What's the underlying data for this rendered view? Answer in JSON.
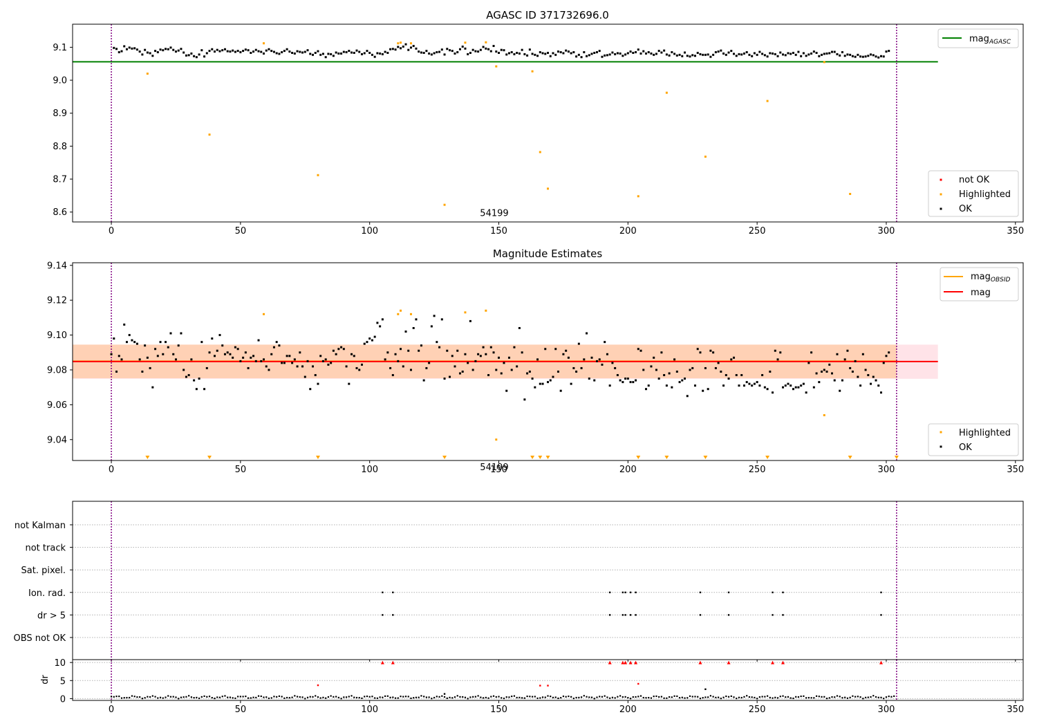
{
  "figure": {
    "panel1_title": "AGASC ID 371732696.0",
    "panel2_title": "Magnitude Estimates",
    "obsid_label": "54199"
  },
  "colors": {
    "ok": "#000000",
    "highlighted": "#ffa500",
    "not_ok": "#ff0000",
    "mag_agasc_line": "#008000",
    "mag_line": "#ff0000",
    "mag_obsid_line": "#ffa500",
    "obs_boundary": "#800080",
    "mag_band_outer": "#ffc0cb",
    "mag_band_inner": "#ffcba4",
    "grid": "#b0b0b0"
  },
  "chart_data": [
    {
      "type": "scatter",
      "title": "AGASC ID 371732696.0",
      "xlim": [
        -15,
        353
      ],
      "ylim": [
        8.57,
        9.17
      ],
      "xticks": [
        0,
        50,
        100,
        150,
        200,
        250,
        300,
        350
      ],
      "yticks": [
        8.6,
        8.7,
        8.8,
        8.9,
        9.0,
        9.1
      ],
      "mag_agasc": 9.056,
      "mag_agasc_xrange": [
        -15,
        320
      ],
      "obs_boundaries": [
        0,
        304
      ],
      "annotation": {
        "text": "54199",
        "x": 152,
        "y": 8.6
      },
      "legends": {
        "line": [
          {
            "label": "mag",
            "sub": "AGASC",
            "color": "#008000"
          }
        ],
        "points": [
          {
            "label": "not OK",
            "color": "#ff0000"
          },
          {
            "label": "Highlighted",
            "color": "#ffa500"
          },
          {
            "label": "OK",
            "color": "#000000"
          }
        ]
      },
      "highlighted": [
        [
          14,
          9.02
        ],
        [
          38,
          8.835
        ],
        [
          59,
          9.112
        ],
        [
          80,
          8.712
        ],
        [
          111,
          9.112
        ],
        [
          112,
          9.114
        ],
        [
          116,
          9.112
        ],
        [
          129,
          8.622
        ],
        [
          137,
          9.114
        ],
        [
          145,
          9.115
        ],
        [
          149,
          9.042
        ],
        [
          163,
          9.027
        ],
        [
          166,
          8.782
        ],
        [
          169,
          8.671
        ],
        [
          204,
          8.648
        ],
        [
          215,
          8.962
        ],
        [
          230,
          8.768
        ],
        [
          254,
          8.937
        ],
        [
          276,
          9.055
        ],
        [
          286,
          8.655
        ]
      ],
      "ok_series": {
        "x_start": 1,
        "x_end": 303,
        "x_step": 1,
        "y": [
          9.098,
          9.095,
          9.085,
          9.088,
          9.103,
          9.094,
          9.099,
          9.096,
          9.097,
          9.093,
          9.087,
          9.078,
          9.092,
          9.084,
          9.082,
          9.074,
          9.089,
          9.085,
          9.093,
          9.091,
          9.095,
          9.094,
          9.099,
          9.092,
          9.087,
          9.09,
          9.095,
          9.084,
          9.075,
          9.076,
          9.081,
          9.073,
          9.07,
          9.078,
          9.091,
          9.072,
          9.082,
          9.089,
          9.094,
          9.087,
          9.092,
          9.088,
          9.091,
          9.094,
          9.088,
          9.087,
          9.09,
          9.086,
          9.089,
          9.085,
          9.089,
          9.093,
          9.091,
          9.083,
          9.087,
          9.092,
          9.088,
          9.086,
          9.081,
          9.09,
          9.094,
          9.089,
          9.086,
          9.082,
          9.08,
          9.085,
          9.089,
          9.094,
          9.087,
          9.083,
          9.081,
          9.088,
          9.086,
          9.084,
          9.086,
          9.091,
          9.08,
          9.077,
          9.083,
          9.088,
          9.077,
          9.08,
          9.07,
          9.08,
          9.079,
          9.074,
          9.084,
          9.081,
          9.081,
          9.086,
          9.085,
          9.089,
          9.084,
          9.083,
          9.09,
          9.086,
          9.079,
          9.082,
          9.089,
          9.083,
          9.077,
          9.071,
          9.082,
          9.081,
          9.079,
          9.086,
          9.083,
          9.094,
          9.095,
          9.093,
          9.101,
          9.097,
          9.102,
          9.109,
          9.092,
          9.099,
          9.104,
          9.096,
          9.087,
          9.084,
          9.083,
          9.089,
          9.081,
          9.078,
          9.082,
          9.085,
          9.086,
          9.093,
          9.078,
          9.095,
          9.091,
          9.089,
          9.081,
          9.085,
          9.094,
          9.102,
          9.096,
          9.079,
          9.083,
          9.092,
          9.088,
          9.087,
          9.092,
          9.101,
          9.096,
          9.094,
          9.088,
          9.104,
          9.087,
          9.083,
          9.092,
          9.091,
          9.078,
          9.082,
          9.085,
          9.079,
          9.083,
          9.081,
          9.092,
          9.079,
          9.075,
          9.093,
          9.08,
          9.077,
          9.074,
          9.085,
          9.082,
          9.08,
          9.083,
          9.073,
          9.082,
          9.077,
          9.087,
          9.085,
          9.082,
          9.09,
          9.087,
          9.082,
          9.085,
          9.072,
          9.077,
          9.07,
          9.085,
          9.073,
          9.076,
          9.08,
          9.083,
          9.085,
          9.089,
          9.071,
          9.075,
          9.076,
          9.078,
          9.084,
          9.079,
          9.082,
          9.081,
          9.074,
          9.078,
          9.082,
          9.087,
          9.083,
          9.085,
          9.093,
          9.081,
          9.088,
          9.081,
          9.085,
          9.081,
          9.077,
          9.08,
          9.089,
          9.084,
          9.09,
          9.078,
          9.075,
          9.085,
          9.08,
          9.075,
          9.077,
          9.073,
          9.084,
          9.074,
          9.072,
          9.076,
          9.074,
          9.083,
          9.079,
          9.077,
          9.077,
          9.078,
          9.071,
          9.077,
          9.085,
          9.087,
          9.09,
          9.081,
          9.077,
          9.084,
          9.089,
          9.08,
          9.074,
          9.079,
          9.078,
          9.081,
          9.085,
          9.077,
          9.073,
          9.082,
          9.077,
          9.086,
          9.08,
          9.076,
          9.072,
          9.082,
          9.081,
          9.079,
          9.073,
          9.084,
          9.078,
          9.076,
          9.082,
          9.08,
          9.083,
          9.077,
          9.086,
          9.073,
          9.082,
          9.074,
          9.078,
          9.081,
          9.087,
          9.083,
          9.073,
          9.077,
          9.08,
          9.081,
          9.082,
          9.086,
          9.086,
          9.079,
          9.075,
          9.085,
          9.074,
          9.078,
          9.077,
          9.073,
          9.071,
          9.077,
          9.072,
          9.071,
          9.072,
          9.074,
          9.078,
          9.076,
          9.072,
          9.069,
          9.073,
          9.072,
          9.087,
          9.089
        ]
      }
    },
    {
      "type": "scatter",
      "title": "Magnitude Estimates",
      "xlim": [
        -15,
        353
      ],
      "ylim": [
        9.028,
        9.1415
      ],
      "xticks": [
        0,
        50,
        100,
        150,
        200,
        250,
        300,
        350
      ],
      "yticks": [
        9.04,
        9.06,
        9.08,
        9.1,
        9.12,
        9.14
      ],
      "ytick_labels": [
        "9.04",
        "9.06",
        "9.08",
        "9.10",
        "9.12",
        "9.14"
      ],
      "mag": 9.0848,
      "mag_band_outer": [
        9.0749,
        9.0945
      ],
      "mag_band_inner": [
        9.0752,
        9.0945
      ],
      "mag_obsid": 9.085,
      "band_xrange": [
        -15,
        320
      ],
      "obs_boundaries": [
        0,
        304
      ],
      "annotation": {
        "text": "54199",
        "x": 152,
        "y": 9.032
      },
      "legends": {
        "line": [
          {
            "label": "mag",
            "sub": "OBSID",
            "color": "#ffa500"
          },
          {
            "label": "mag",
            "sub": "",
            "color": "#ff0000"
          }
        ],
        "points": [
          {
            "label": "Highlighted",
            "color": "#ffa500"
          },
          {
            "label": "OK",
            "color": "#000000"
          }
        ]
      },
      "highlighted": [
        [
          59,
          9.112
        ],
        [
          111,
          9.112
        ],
        [
          112,
          9.114
        ],
        [
          116,
          9.112
        ],
        [
          137,
          9.113
        ],
        [
          145,
          9.114
        ],
        [
          149,
          9.04
        ],
        [
          276,
          9.054
        ]
      ],
      "highlighted_below_axis": [
        14,
        38,
        80,
        129,
        163,
        166,
        169,
        204,
        215,
        230,
        254,
        286,
        304
      ],
      "ok_series": {
        "x_start": 0,
        "x_end": 303,
        "x_step": 1,
        "y": [
          9.089,
          9.098,
          9.079,
          9.088,
          9.086,
          9.106,
          9.096,
          9.1,
          9.097,
          9.096,
          9.095,
          9.086,
          9.079,
          9.094,
          9.087,
          9.081,
          9.07,
          9.092,
          9.088,
          9.096,
          9.089,
          9.096,
          9.093,
          9.101,
          9.089,
          9.086,
          9.094,
          9.101,
          9.08,
          9.076,
          9.077,
          9.086,
          9.074,
          9.069,
          9.075,
          9.096,
          9.069,
          9.081,
          9.09,
          9.098,
          9.088,
          9.091,
          9.1,
          9.094,
          9.089,
          9.09,
          9.089,
          9.087,
          9.093,
          9.092,
          9.085,
          9.087,
          9.09,
          9.081,
          9.087,
          9.088,
          9.085,
          9.097,
          9.085,
          9.086,
          9.082,
          9.08,
          9.089,
          9.093,
          9.096,
          9.094,
          9.084,
          9.084,
          9.088,
          9.088,
          9.084,
          9.086,
          9.082,
          9.09,
          9.082,
          9.076,
          9.085,
          9.069,
          9.082,
          9.077,
          9.072,
          9.088,
          9.085,
          9.086,
          9.083,
          9.084,
          9.091,
          9.089,
          9.092,
          9.093,
          9.092,
          9.082,
          9.072,
          9.089,
          9.088,
          9.081,
          9.08,
          9.083,
          9.095,
          9.096,
          9.098,
          9.097,
          9.099,
          9.107,
          9.105,
          9.109,
          9.086,
          9.09,
          9.081,
          9.077,
          9.089,
          9.085,
          9.092,
          9.082,
          9.102,
          9.091,
          9.08,
          9.104,
          9.109,
          9.091,
          9.094,
          9.074,
          9.081,
          9.084,
          9.105,
          9.111,
          9.096,
          9.093,
          9.109,
          9.075,
          9.091,
          9.076,
          9.088,
          9.082,
          9.091,
          9.078,
          9.079,
          9.089,
          9.084,
          9.108,
          9.08,
          9.085,
          9.089,
          9.088,
          9.093,
          9.089,
          9.077,
          9.093,
          9.09,
          9.08,
          9.087,
          9.078,
          9.084,
          9.068,
          9.087,
          9.08,
          9.093,
          9.082,
          9.104,
          9.09,
          9.063,
          9.078,
          9.079,
          9.075,
          9.07,
          9.086,
          9.072,
          9.072,
          9.092,
          9.073,
          9.074,
          9.076,
          9.092,
          9.079,
          9.068,
          9.089,
          9.091,
          9.087,
          9.072,
          9.081,
          9.079,
          9.095,
          9.081,
          9.086,
          9.101,
          9.075,
          9.087,
          9.074,
          9.085,
          9.086,
          9.083,
          9.096,
          9.089,
          9.071,
          9.084,
          9.081,
          9.077,
          9.074,
          9.073,
          9.075,
          9.075,
          9.073,
          9.073,
          9.074,
          9.092,
          9.091,
          9.08,
          9.069,
          9.071,
          9.082,
          9.087,
          9.08,
          9.075,
          9.09,
          9.077,
          9.071,
          9.078,
          9.07,
          9.086,
          9.079,
          9.073,
          9.074,
          9.075,
          9.065,
          9.08,
          9.081,
          9.071,
          9.092,
          9.09,
          9.068,
          9.081,
          9.069,
          9.091,
          9.09,
          9.081,
          9.084,
          9.079,
          9.071,
          9.077,
          9.075,
          9.086,
          9.087,
          9.077,
          9.071,
          9.077,
          9.071,
          9.073,
          9.072,
          9.071,
          9.072,
          9.073,
          9.071,
          9.077,
          9.07,
          9.069,
          9.079,
          9.067,
          9.091,
          9.086,
          9.09,
          9.07,
          9.071,
          9.072,
          9.071,
          9.069,
          9.07,
          9.07,
          9.071,
          9.072,
          9.067,
          9.084,
          9.09,
          9.07,
          9.078,
          9.073,
          9.079,
          9.08,
          9.079,
          9.083,
          9.078,
          9.074,
          9.089,
          9.068,
          9.074,
          9.086,
          9.091,
          9.081,
          9.079,
          9.085,
          9.076,
          9.071,
          9.089,
          9.08,
          9.077,
          9.072,
          9.076,
          9.074,
          9.071,
          9.067,
          9.084,
          9.088,
          9.09
        ]
      }
    },
    {
      "type": "scatter",
      "title": "",
      "xlim": [
        -15,
        353
      ],
      "flag_rows": [
        "not Kalman",
        "not track",
        "Sat. pixel.",
        "Ion. rad.",
        "dr > 5",
        "OBS not OK"
      ],
      "flags": {
        "Ion. rad.": [
          105,
          109,
          193,
          198,
          199,
          201,
          203,
          228,
          239,
          256,
          260,
          298
        ],
        "dr > 5": [
          105,
          109,
          193,
          198,
          199,
          201,
          203,
          228,
          239,
          256,
          260,
          298
        ]
      },
      "obs_boundaries": [
        0,
        304
      ]
    },
    {
      "type": "scatter",
      "ylabel": "dr",
      "xlim": [
        -15,
        353
      ],
      "ylim": [
        -0.5,
        10.8
      ],
      "yticks": [
        0,
        5,
        10
      ],
      "xticks": [
        0,
        50,
        100,
        150,
        200,
        250,
        300,
        350
      ],
      "obs_boundaries": [
        0,
        304
      ],
      "dr_capped_red": [
        105,
        109,
        193,
        198,
        199,
        201,
        203,
        228,
        239,
        256,
        260,
        298
      ],
      "dr_red_points": [
        [
          80,
          3.7
        ],
        [
          166,
          3.6
        ],
        [
          169,
          3.6
        ],
        [
          204,
          4.1
        ]
      ],
      "dr_black_points": [
        [
          129,
          1.3
        ],
        [
          230,
          2.6
        ]
      ],
      "dr_baseline": {
        "x_start": 0,
        "x_end": 303,
        "typical": 0.4
      }
    }
  ]
}
